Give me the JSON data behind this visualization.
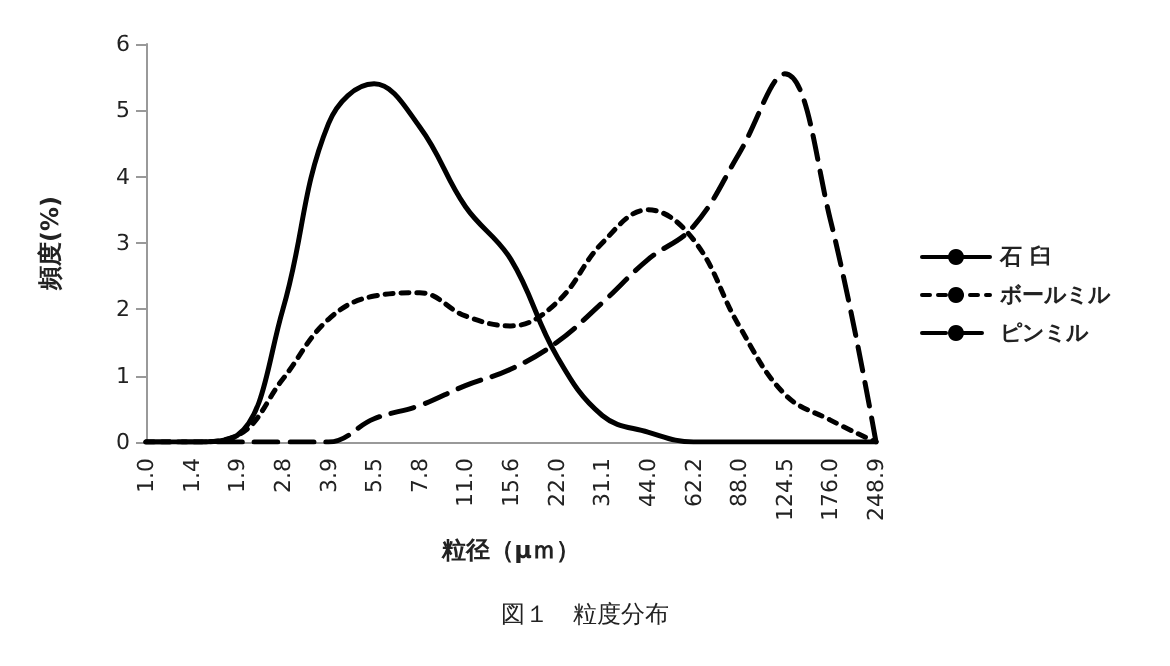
{
  "chart_data": {
    "type": "line",
    "title": "図１　粒度分布",
    "xlabel": "粒径（μｍ）",
    "ylabel": "頻度(%)",
    "categories": [
      "1.0",
      "1.4",
      "1.9",
      "2.8",
      "3.9",
      "5.5",
      "7.8",
      "11.0",
      "15.6",
      "22.0",
      "31.1",
      "44.0",
      "62.2",
      "88.0",
      "124.5",
      "176.0",
      "248.9"
    ],
    "series": [
      {
        "name": "石 臼",
        "color": "#000000",
        "line_style": "solid",
        "values": [
          0,
          0,
          0.1,
          2.0,
          4.8,
          5.4,
          4.75,
          3.55,
          2.75,
          1.3,
          0.4,
          0.15,
          0,
          0,
          0,
          0,
          0
        ]
      },
      {
        "name": "ボールミル",
        "color": "#000000",
        "line_style": "dotted",
        "values": [
          0,
          0,
          0.1,
          0.95,
          1.85,
          2.2,
          2.25,
          1.9,
          1.75,
          2.1,
          3.0,
          3.5,
          3.05,
          1.75,
          0.72,
          0.33,
          0
        ]
      },
      {
        "name": "ピンミル",
        "color": "#000000",
        "line_style": "dashed",
        "values": [
          0,
          0,
          0,
          0,
          0,
          0.35,
          0.55,
          0.85,
          1.1,
          1.5,
          2.1,
          2.75,
          3.25,
          4.35,
          5.55,
          3.35,
          0
        ]
      }
    ],
    "ylim": [
      0,
      6
    ],
    "yticks": [
      0,
      1,
      2,
      3,
      4,
      5,
      6
    ],
    "grid": false,
    "legend": "right",
    "marker": "none"
  }
}
